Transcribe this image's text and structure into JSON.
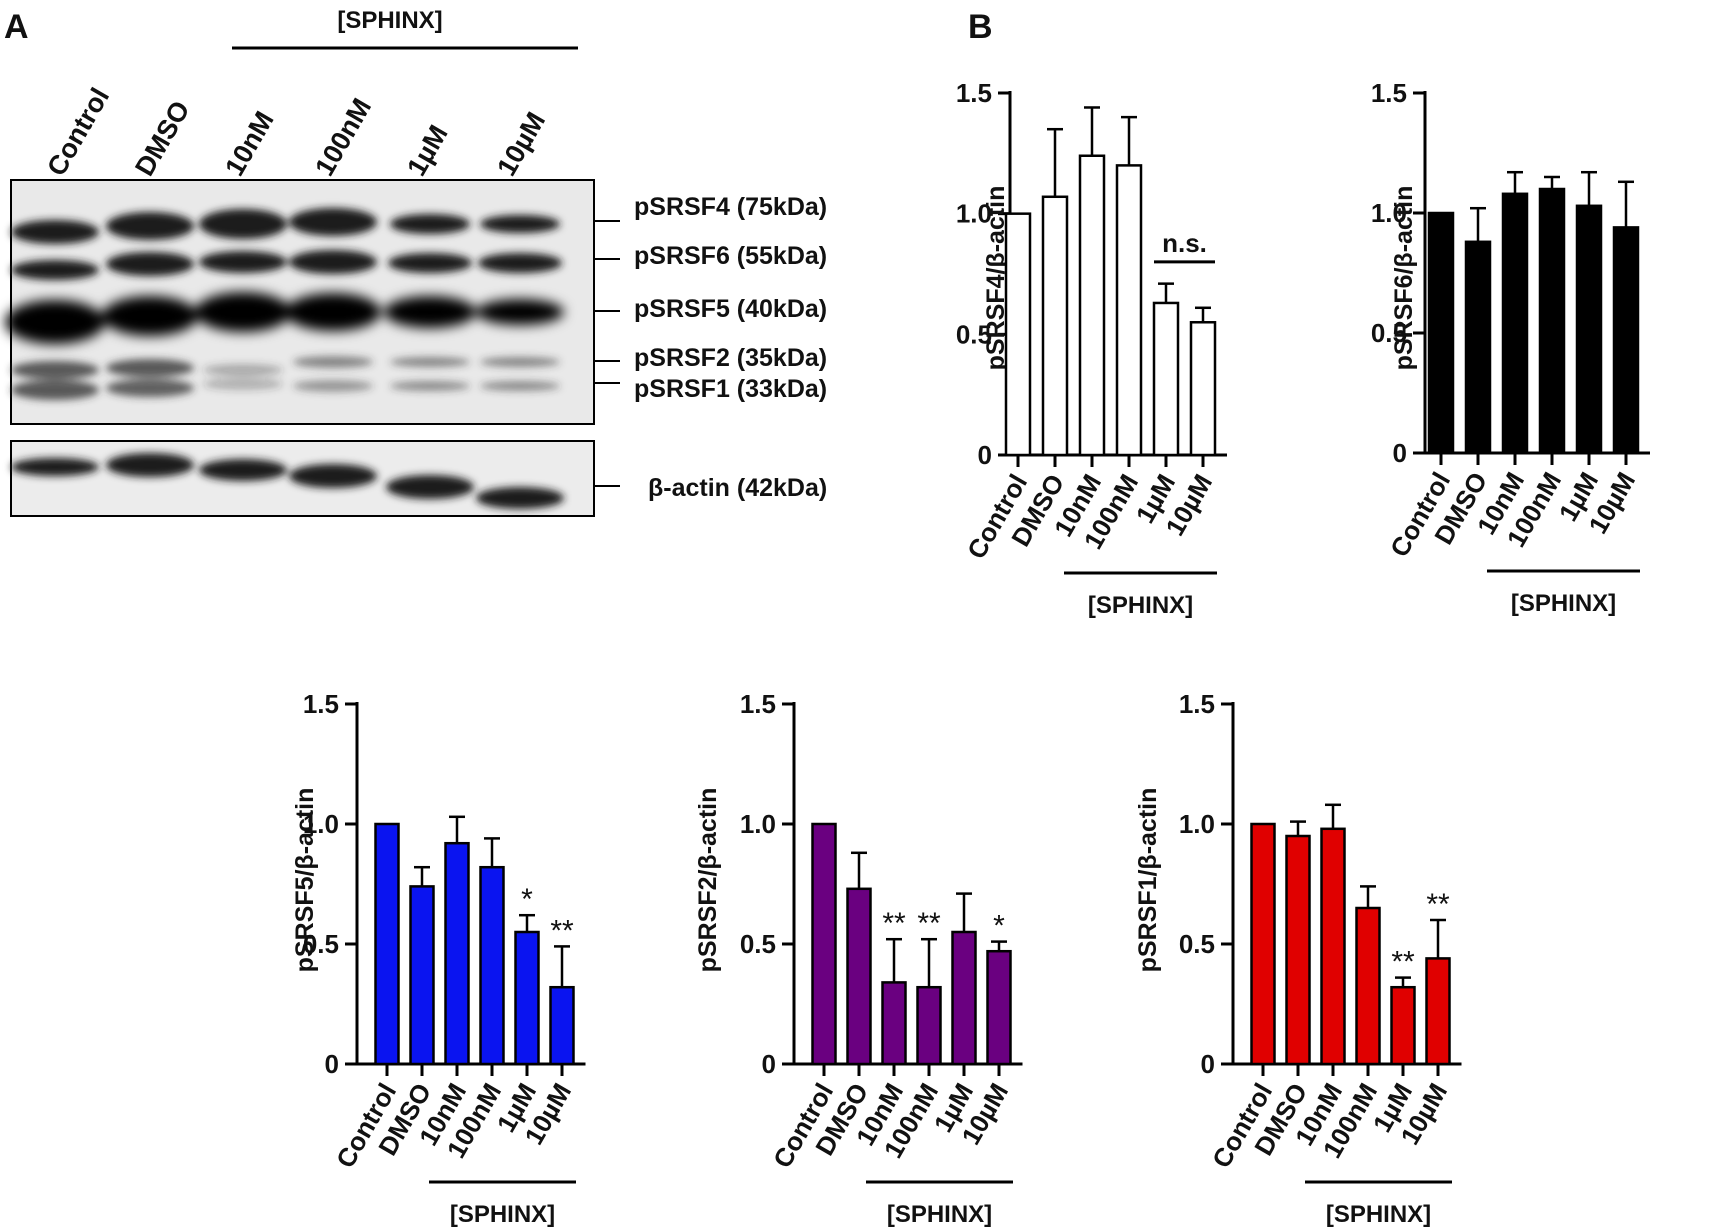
{
  "panel_labels": {
    "a": "A",
    "b": "B"
  },
  "blot": {
    "group_label": "[SPHINX]",
    "lanes": [
      "Control",
      "DMSO",
      "10nM",
      "100nM",
      "1µM",
      "10µM"
    ],
    "bands": [
      "pSRSF4 (75kDa)",
      "pSRSF6 (55kDa)",
      "pSRSF5 (40kDa)",
      "pSRSF2 (35kDa)",
      "pSRSF1 (33kDa)"
    ],
    "loading_control": "β-actin (42kDa)"
  },
  "chart_data": [
    {
      "type": "bar",
      "ylabel": "pSRSF4/β-actin",
      "categories": [
        "Control",
        "DMSO",
        "10nM",
        "100nM",
        "1µM",
        "10µM"
      ],
      "group_label": "[SPHINX]",
      "values": [
        1.0,
        1.07,
        1.24,
        1.2,
        0.63,
        0.55
      ],
      "errors": [
        0,
        0.28,
        0.2,
        0.2,
        0.08,
        0.06
      ],
      "ylim": [
        0,
        1.5
      ],
      "yticks": [
        "0",
        "0.5",
        "1.0",
        "1.5"
      ],
      "fill": "#ffffff",
      "stroke": "#000000",
      "annotations": [
        "",
        "",
        "",
        "",
        "",
        ""
      ],
      "bracket_label": "n.s."
    },
    {
      "type": "bar",
      "ylabel": "pSRSF6/β-actin",
      "categories": [
        "Control",
        "DMSO",
        "10nM",
        "100nM",
        "1µM",
        "10µM"
      ],
      "group_label": "[SPHINX]",
      "values": [
        1.0,
        0.88,
        1.08,
        1.1,
        1.03,
        0.94
      ],
      "errors": [
        0,
        0.14,
        0.09,
        0.05,
        0.14,
        0.19
      ],
      "ylim": [
        0,
        1.5
      ],
      "yticks": [
        "0",
        "0.5",
        "1.0",
        "1.5"
      ],
      "fill": "#000000",
      "stroke": "#000000",
      "annotations": [
        "",
        "",
        "",
        "",
        "",
        ""
      ]
    },
    {
      "type": "bar",
      "ylabel": "pSRSF5/β-actin",
      "categories": [
        "Control",
        "DMSO",
        "10nM",
        "100nM",
        "1µM",
        "10µM"
      ],
      "group_label": "[SPHINX]",
      "values": [
        1.0,
        0.74,
        0.92,
        0.82,
        0.55,
        0.32
      ],
      "errors": [
        0,
        0.08,
        0.11,
        0.12,
        0.07,
        0.17
      ],
      "ylim": [
        0,
        1.5
      ],
      "yticks": [
        "0",
        "0.5",
        "1.0",
        "1.5"
      ],
      "fill": "#0a14f0",
      "stroke": "#000000",
      "annotations": [
        "",
        "",
        "",
        "",
        "*",
        "**"
      ]
    },
    {
      "type": "bar",
      "ylabel": "pSRSF2/β-actin",
      "categories": [
        "Control",
        "DMSO",
        "10nM",
        "100nM",
        "1µM",
        "10µM"
      ],
      "group_label": "[SPHINX]",
      "values": [
        1.0,
        0.73,
        0.34,
        0.32,
        0.55,
        0.47
      ],
      "errors": [
        0,
        0.15,
        0.18,
        0.2,
        0.16,
        0.04
      ],
      "ylim": [
        0,
        1.5
      ],
      "yticks": [
        "0",
        "0.5",
        "1.0",
        "1.5"
      ],
      "fill": "#6a0080",
      "stroke": "#000000",
      "annotations": [
        "",
        "",
        "**",
        "**",
        "",
        "*"
      ]
    },
    {
      "type": "bar",
      "ylabel": "pSRSF1/β-actin",
      "categories": [
        "Control",
        "DMSO",
        "10nM",
        "100nM",
        "1µM",
        "10µM"
      ],
      "group_label": "[SPHINX]",
      "values": [
        1.0,
        0.95,
        0.98,
        0.65,
        0.32,
        0.44
      ],
      "errors": [
        0,
        0.06,
        0.1,
        0.09,
        0.04,
        0.16
      ],
      "ylim": [
        0,
        1.5
      ],
      "yticks": [
        "0",
        "0.5",
        "1.0",
        "1.5"
      ],
      "fill": "#e00000",
      "stroke": "#000000",
      "annotations": [
        "",
        "",
        "",
        "",
        "**",
        "**"
      ]
    }
  ]
}
